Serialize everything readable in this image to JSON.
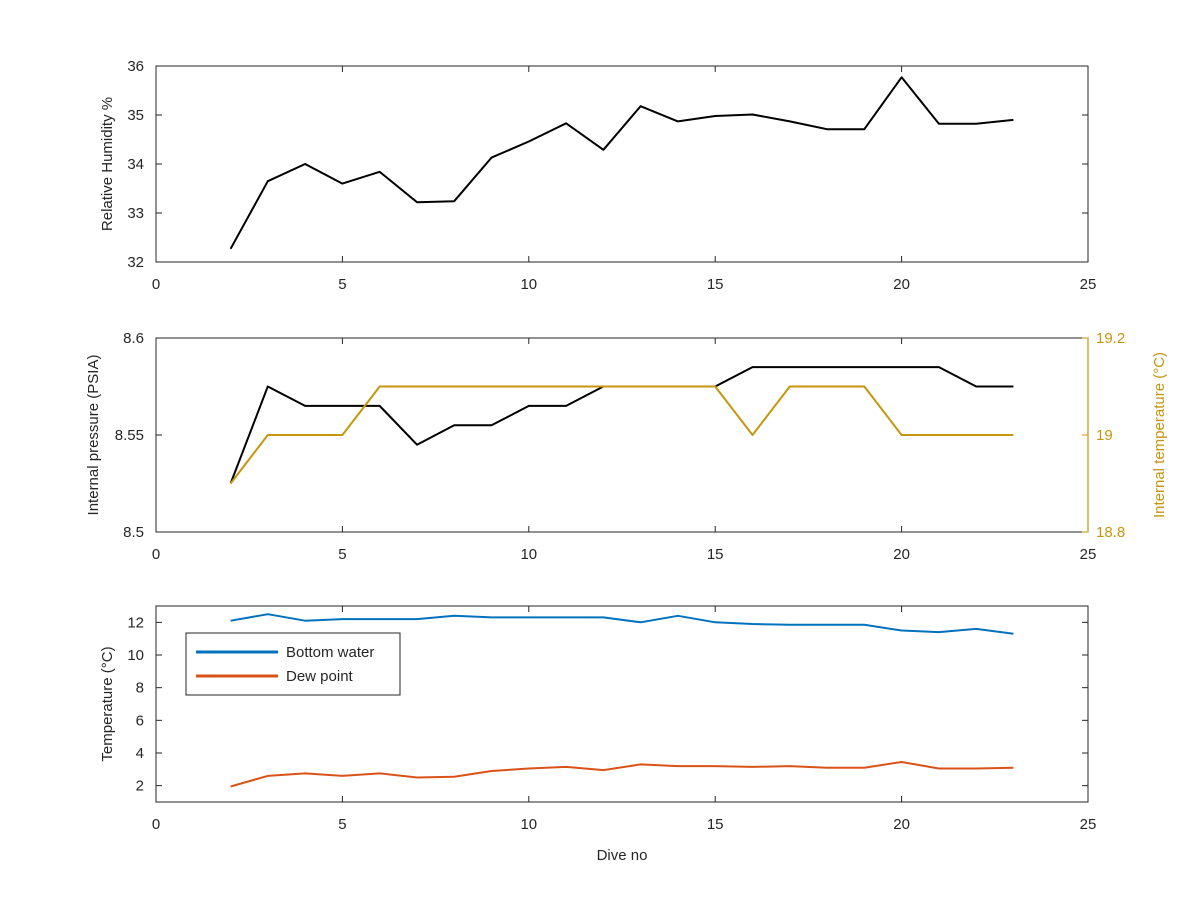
{
  "chart_data": [
    {
      "type": "line",
      "xlabel": "",
      "ylabel": "Relative Humidity %",
      "xlim": [
        0,
        25
      ],
      "ylim": [
        32,
        36
      ],
      "xticks": [
        "0",
        "5",
        "10",
        "15",
        "20",
        "25"
      ],
      "yticks": [
        "32",
        "33",
        "34",
        "35",
        "36"
      ],
      "grid": false,
      "series": [
        {
          "color": "#000000",
          "x": [
            2,
            3,
            4,
            5,
            6,
            7,
            8,
            9,
            10,
            11,
            12,
            13,
            14,
            15,
            16,
            17,
            18,
            19,
            20,
            21,
            22,
            23
          ],
          "values": [
            32.27,
            33.65,
            34.0,
            33.6,
            33.84,
            33.22,
            33.24,
            34.13,
            34.46,
            34.83,
            34.29,
            35.18,
            34.87,
            34.98,
            35.01,
            34.87,
            34.71,
            34.71,
            35.77,
            34.82,
            34.82,
            34.9
          ]
        }
      ]
    },
    {
      "type": "line",
      "xlabel": "",
      "ylabel": "Internal pressure (PSIA)",
      "ylabel_right": "Internal temperature (°C)",
      "xlim": [
        0,
        25
      ],
      "ylim": [
        8.5,
        8.6
      ],
      "ylim_right": [
        18.8,
        19.2
      ],
      "xticks": [
        "0",
        "5",
        "10",
        "15",
        "20",
        "25"
      ],
      "yticks": [
        "8.5",
        "8.55",
        "8.6"
      ],
      "yticks_right": [
        "18.8",
        "19",
        "19.2"
      ],
      "right_axis_color": "#C6960D",
      "grid": false,
      "series": [
        {
          "color": "#000000",
          "axis": "left",
          "x": [
            2,
            3,
            4,
            5,
            6,
            7,
            8,
            9,
            10,
            11,
            12,
            13,
            14,
            15,
            16,
            17,
            18,
            19,
            20,
            21,
            22,
            23
          ],
          "values": [
            8.525,
            8.575,
            8.565,
            8.565,
            8.565,
            8.545,
            8.555,
            8.555,
            8.565,
            8.565,
            8.575,
            8.575,
            8.575,
            8.575,
            8.585,
            8.585,
            8.585,
            8.585,
            8.585,
            8.585,
            8.575,
            8.575
          ]
        },
        {
          "color": "#C6960D",
          "axis": "right",
          "x": [
            2,
            3,
            4,
            5,
            6,
            7,
            8,
            9,
            10,
            11,
            12,
            13,
            14,
            15,
            16,
            17,
            18,
            19,
            20,
            21,
            22,
            23
          ],
          "values": [
            18.9,
            19.0,
            19.0,
            19.0,
            19.1,
            19.1,
            19.1,
            19.1,
            19.1,
            19.1,
            19.1,
            19.1,
            19.1,
            19.1,
            19.0,
            19.1,
            19.1,
            19.1,
            19.0,
            19.0,
            19.0,
            19.0
          ]
        }
      ]
    },
    {
      "type": "line",
      "xlabel": "Dive no",
      "ylabel": "Temperature (°C)",
      "xlim": [
        0,
        25
      ],
      "ylim": [
        1,
        13
      ],
      "xticks": [
        "0",
        "5",
        "10",
        "15",
        "20",
        "25"
      ],
      "yticks": [
        "2",
        "4",
        "6",
        "8",
        "10",
        "12"
      ],
      "grid": false,
      "legend": "top-left",
      "series": [
        {
          "name": "Bottom water",
          "color": "#0072BD",
          "x": [
            2,
            3,
            4,
            5,
            6,
            7,
            8,
            9,
            10,
            11,
            12,
            13,
            14,
            15,
            16,
            17,
            18,
            19,
            20,
            21,
            22,
            23
          ],
          "values": [
            12.1,
            12.5,
            12.1,
            12.2,
            12.2,
            12.2,
            12.4,
            12.3,
            12.3,
            12.3,
            12.3,
            12.0,
            12.4,
            12.0,
            11.9,
            11.85,
            11.85,
            11.85,
            11.5,
            11.4,
            11.6,
            11.3
          ]
        },
        {
          "name": "Dew point",
          "color": "#D95319",
          "x": [
            2,
            3,
            4,
            5,
            6,
            7,
            8,
            9,
            10,
            11,
            12,
            13,
            14,
            15,
            16,
            17,
            18,
            19,
            20,
            21,
            22,
            23
          ],
          "values": [
            1.95,
            2.6,
            2.75,
            2.6,
            2.75,
            2.5,
            2.55,
            2.9,
            3.05,
            3.15,
            2.95,
            3.3,
            3.2,
            3.2,
            3.15,
            3.2,
            3.1,
            3.1,
            3.45,
            3.05,
            3.05,
            3.1
          ]
        }
      ]
    }
  ]
}
